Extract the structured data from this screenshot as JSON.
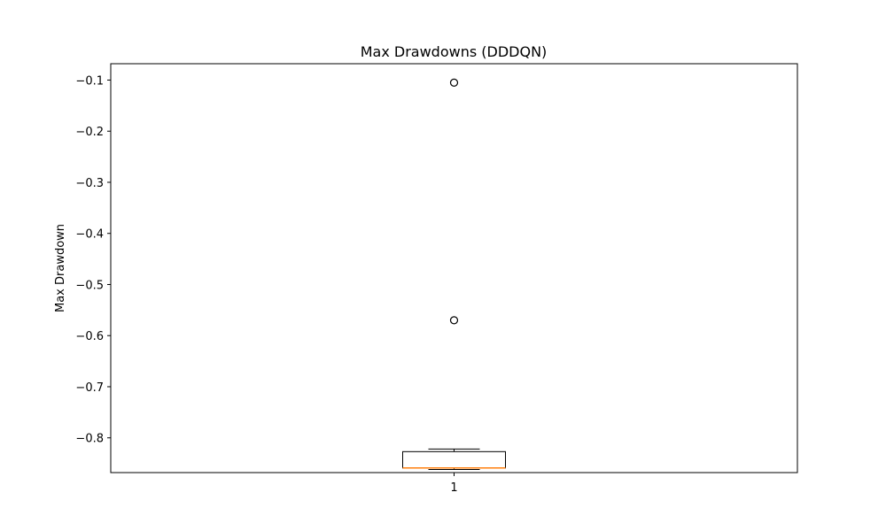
{
  "chart_data": {
    "type": "box",
    "title": "Max Drawdowns (DDDQN)",
    "xlabel": "",
    "ylabel": "Max Drawdown",
    "categories": [
      "1"
    ],
    "ylim": [
      -0.868,
      -0.068
    ],
    "yticks": [
      -0.1,
      -0.2,
      -0.3,
      -0.4,
      -0.5,
      -0.6,
      -0.7,
      -0.8
    ],
    "ytick_labels": [
      "−0.1",
      "−0.2",
      "−0.3",
      "−0.4",
      "−0.5",
      "−0.6",
      "−0.7",
      "−0.8"
    ],
    "boxes": [
      {
        "category": "1",
        "whisker_low": -0.862,
        "q1": -0.859,
        "median": -0.859,
        "q3": -0.827,
        "whisker_high": -0.822,
        "outliers": [
          -0.105,
          -0.57
        ]
      }
    ],
    "grid": false,
    "colors": {
      "median": "#ff7f0e",
      "box": "#000000"
    }
  }
}
